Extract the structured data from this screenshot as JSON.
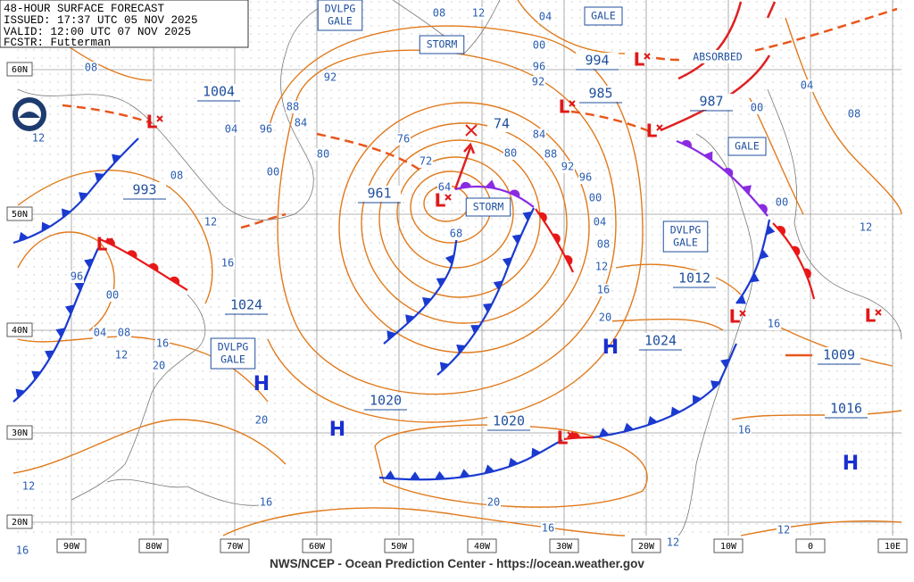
{
  "header": {
    "title": "48-HOUR SURFACE FORECAST",
    "issued": "ISSUED: 17:37 UTC 05 NOV 2025",
    "valid": "VALID: 12:00 UTC 07 NOV 2025",
    "forecaster": "FCSTR: Futterman"
  },
  "latitudes": [
    "60N",
    "50N",
    "40N",
    "30N",
    "20N"
  ],
  "longitudes": [
    "90W",
    "80W",
    "70W",
    "60W",
    "50W",
    "40W",
    "30W",
    "20W",
    "10W",
    "0",
    "10E"
  ],
  "centers": [
    {
      "symbol": "L",
      "pressure": "1004"
    },
    {
      "symbol": "L",
      "pressure": "993"
    },
    {
      "symbol": "L",
      "pressure": "961"
    },
    {
      "symbol": "L",
      "pressure": "985"
    },
    {
      "symbol": "L",
      "pressure": "994"
    },
    {
      "symbol": "L",
      "pressure": "987"
    },
    {
      "symbol": "L"
    },
    {
      "symbol": "L",
      "pressure": "1009"
    },
    {
      "symbol": "L",
      "pressure": "1020"
    },
    {
      "symbol": "H",
      "pressure": "1024"
    },
    {
      "symbol": "H",
      "pressure": "1020"
    },
    {
      "symbol": "H",
      "pressure": "1024"
    },
    {
      "symbol": "H",
      "pressure": "1016"
    },
    {
      "symbol": "H",
      "pressure": "1012"
    }
  ],
  "developing_low": {
    "pressure": "74"
  },
  "warnings": [
    {
      "lines": [
        "DVLPG",
        "GALE"
      ]
    },
    {
      "lines": [
        "STORM"
      ]
    },
    {
      "lines": [
        "GALE"
      ]
    },
    {
      "lines": [
        "STORM"
      ]
    },
    {
      "lines": [
        "GALE"
      ]
    },
    {
      "lines": [
        "DVLPG",
        "GALE"
      ]
    },
    {
      "lines": [
        "DVLPG",
        "GALE"
      ]
    }
  ],
  "annotation": "ABSORBED",
  "isobar_labels": [
    "08",
    "12",
    "04",
    "96",
    "00",
    "92",
    "88",
    "84",
    "80",
    "76",
    "72",
    "64",
    "68",
    "80",
    "84",
    "88",
    "92",
    "96",
    "00",
    "04",
    "08",
    "12",
    "16",
    "20",
    "08",
    "12",
    "16",
    "96",
    "00",
    "04",
    "08",
    "12",
    "16",
    "20",
    "20",
    "20",
    "16",
    "16",
    "12",
    "16",
    "12",
    "12",
    "16",
    "16",
    "00",
    "12",
    "08",
    "04",
    "00",
    "92",
    "96",
    "00",
    "04",
    "08",
    "12"
  ],
  "footer": "NWS/NCEP - Ocean Prediction Center - https://ocean.weather.gov"
}
